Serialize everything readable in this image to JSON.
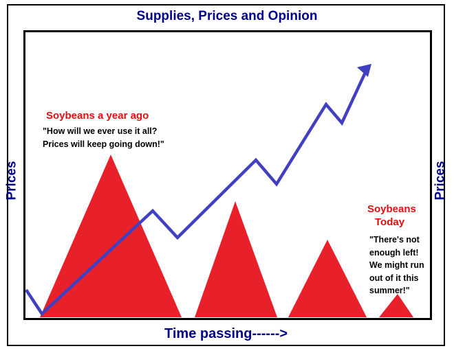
{
  "title": "Supplies, Prices and Opinion",
  "x_label": "Time passing------>",
  "y_label_left": "Prices",
  "y_label_right": "Prices",
  "left_annotation": {
    "heading": "Soybeans  a year ago",
    "quote_line1": "\"How will we ever use it all?",
    "quote_line2": "Prices will keep going down!\""
  },
  "right_annotation": {
    "heading_line1": "Soybeans",
    "heading_line2": "Today",
    "quote_line1": "\"There's not",
    "quote_line2": "enough left!",
    "quote_line3": "We might run",
    "quote_line4": "out of it this",
    "quote_line5": "summer!\""
  },
  "colors": {
    "title_text": "#00008b",
    "axis_label_text": "#00008b",
    "supply_triangles": "#e8202a",
    "price_line": "#4040c0",
    "annotation_heading": "#e01010",
    "annotation_quote": "#000000"
  },
  "supply_piles_relative_size": [
    1.0,
    0.72,
    0.48,
    0.14
  ],
  "price_trend_direction": "rising"
}
